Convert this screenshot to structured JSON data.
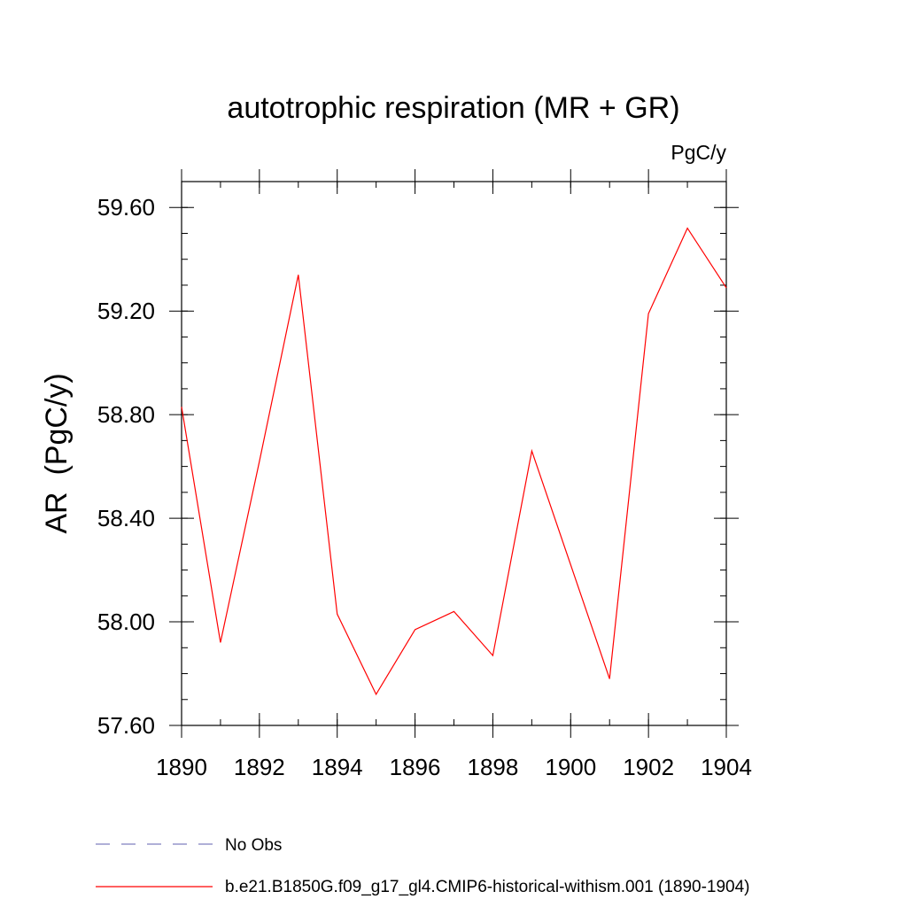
{
  "chart_data": {
    "type": "line",
    "title": "autotrophic respiration (MR + GR)",
    "units_label": "PgC/y",
    "ylabel": "AR  (PgC/y)",
    "xlabel": "",
    "xlim": [
      1890,
      1904
    ],
    "ylim": [
      57.6,
      59.7
    ],
    "x_ticks": [
      1890,
      1892,
      1894,
      1896,
      1898,
      1900,
      1902,
      1904
    ],
    "x_tick_labels": [
      "1890",
      "1892",
      "1894",
      "1896",
      "1898",
      "1900",
      "1902",
      "1904"
    ],
    "y_ticks": [
      57.6,
      58.0,
      58.4,
      58.8,
      59.2,
      59.6
    ],
    "y_tick_labels": [
      "57.60",
      "58.00",
      "58.40",
      "58.80",
      "59.20",
      "59.60"
    ],
    "grid": false,
    "legend_position": "bottom",
    "series": [
      {
        "name": "b.e21.B1850G.f09_g17_gl4.CMIP6-historical-withism.001 (1890-1904)",
        "color": "#ff0000",
        "x": [
          1890,
          1891,
          1892,
          1893,
          1894,
          1895,
          1896,
          1897,
          1898,
          1899,
          1900,
          1901,
          1902,
          1903,
          1904
        ],
        "y": [
          58.83,
          57.92,
          58.62,
          59.34,
          58.03,
          57.72,
          57.97,
          58.04,
          57.87,
          58.66,
          58.22,
          57.78,
          59.19,
          59.52,
          59.29
        ]
      }
    ],
    "legend": [
      {
        "label": "No Obs",
        "color": "#7f7fbf",
        "style": "dashed"
      },
      {
        "label": "b.e21.B1850G.f09_g17_gl4.CMIP6-historical-withism.001 (1890-1904)",
        "color": "#ff0000",
        "style": "solid"
      }
    ]
  }
}
